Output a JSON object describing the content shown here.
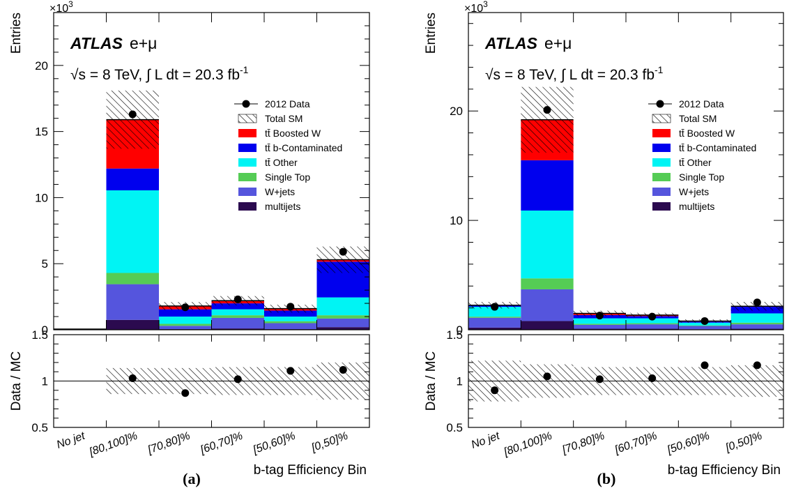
{
  "chart_data": [
    {
      "type": "bar",
      "stacked": true,
      "panel_label": "(a)",
      "experiment": "ATLAS",
      "channel": "e+μ",
      "energy_label": "√s = 8 TeV, ∫ L dt = 20.3 fb",
      "lumi_exponent": "-1",
      "xlabel": "b-tag Efficiency Bin",
      "ylabel": "Entries",
      "y_multiplier_label": "×10",
      "y_multiplier_exp": "3",
      "ylim": [
        0,
        24
      ],
      "yticks": [
        0,
        5,
        10,
        15,
        20
      ],
      "categories": [
        "No jet",
        "[80,100]%",
        "[70,80]%",
        "[60,70]%",
        "[50,60]%",
        "[0,50]%"
      ],
      "series": [
        {
          "name": "multijets",
          "color": "#2b0a4f",
          "values": [
            0,
            0.75,
            0.05,
            0.1,
            0.05,
            0.2
          ]
        },
        {
          "name": "W+jets",
          "color": "#5555dd",
          "values": [
            0,
            2.7,
            0.25,
            0.8,
            0.45,
            0.65
          ]
        },
        {
          "name": "Single Top",
          "color": "#55cc55",
          "values": [
            0,
            0.85,
            0.15,
            0.2,
            0.15,
            0.25
          ]
        },
        {
          "name": "tt̄ Other",
          "color": "#00f4f4",
          "values": [
            0,
            6.25,
            0.55,
            0.45,
            0.35,
            1.35
          ]
        },
        {
          "name": "tt̄ b-Contaminated",
          "color": "#0000ee",
          "values": [
            0,
            1.65,
            0.55,
            0.45,
            0.45,
            2.7
          ]
        },
        {
          "name": "tt̄ Boosted W",
          "color": "#ff0000",
          "values": [
            0,
            3.7,
            0.25,
            0.2,
            0.15,
            0.15
          ]
        }
      ],
      "data": {
        "name": "2012 Data",
        "values": [
          null,
          16.3,
          1.7,
          2.3,
          1.75,
          5.9
        ]
      },
      "total_sm_label": "Total SM",
      "band_halfwidth": [
        0,
        2.2,
        0.3,
        0.35,
        0.3,
        1.0
      ],
      "ratio": {
        "ylabel": "Data / MC",
        "ylim": [
          0.5,
          1.5
        ],
        "yticks": [
          0.5,
          1,
          1.5
        ],
        "values": [
          null,
          1.03,
          0.87,
          1.02,
          1.11,
          1.12
        ],
        "band_halfwidth": [
          0,
          0.14,
          0.14,
          0.15,
          0.15,
          0.2
        ]
      }
    },
    {
      "type": "bar",
      "stacked": true,
      "panel_label": "(b)",
      "experiment": "ATLAS",
      "channel": "e+μ",
      "energy_label": "√s = 8 TeV, ∫ L dt = 20.3 fb",
      "lumi_exponent": "-1",
      "xlabel": "b-tag Efficiency Bin",
      "ylabel": "Entries",
      "y_multiplier_label": "×10",
      "y_multiplier_exp": "3",
      "ylim": [
        0,
        29
      ],
      "yticks": [
        0,
        10,
        20
      ],
      "categories": [
        "No jet",
        "[80,100]%",
        "[70,80]%",
        "[60,70]%",
        "[50,60]%",
        "[0,50]%"
      ],
      "series": [
        {
          "name": "multijets",
          "color": "#2b0a4f",
          "values": [
            0.2,
            0.8,
            0.1,
            0.1,
            0.05,
            0.1
          ]
        },
        {
          "name": "W+jets",
          "color": "#5555dd",
          "values": [
            0.9,
            2.9,
            0.35,
            0.4,
            0.3,
            0.4
          ]
        },
        {
          "name": "Single Top",
          "color": "#55cc55",
          "values": [
            0.1,
            1.0,
            0.1,
            0.1,
            0.05,
            0.15
          ]
        },
        {
          "name": "tt̄ Other",
          "color": "#00f4f4",
          "values": [
            0.9,
            6.2,
            0.5,
            0.45,
            0.25,
            0.85
          ]
        },
        {
          "name": "tt̄ b-Contaminated",
          "color": "#0000ee",
          "values": [
            0.1,
            4.6,
            0.3,
            0.2,
            0.1,
            0.6
          ]
        },
        {
          "name": "tt̄ Boosted W",
          "color": "#ff0000",
          "values": [
            0.05,
            3.7,
            0.15,
            0.1,
            0.05,
            0.05
          ]
        }
      ],
      "data": {
        "name": "2012 Data",
        "values": [
          2.1,
          20.1,
          1.3,
          1.2,
          0.8,
          2.5
        ]
      },
      "total_sm_label": "Total SM",
      "band_halfwidth": [
        0.3,
        3.0,
        0.25,
        0.2,
        0.15,
        0.4
      ],
      "ratio": {
        "ylabel": "Data / MC",
        "ylim": [
          0.5,
          1.5
        ],
        "yticks": [
          0.5,
          1,
          1.5
        ],
        "values": [
          0.9,
          1.05,
          1.02,
          1.03,
          1.17,
          1.17
        ],
        "band_halfwidth": [
          0.22,
          0.18,
          0.15,
          0.15,
          0.15,
          0.17
        ]
      }
    }
  ]
}
